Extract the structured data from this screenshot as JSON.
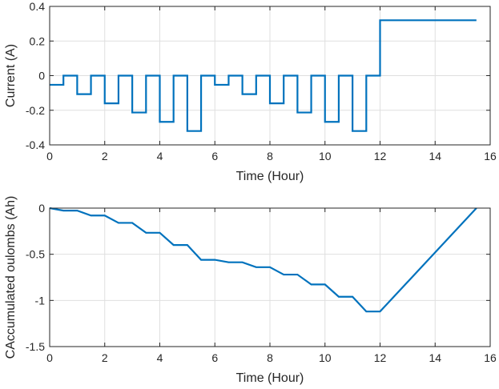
{
  "chart_data": [
    {
      "type": "line",
      "title": "",
      "xlabel": "Time (Hour)",
      "ylabel": "Current (A)",
      "xlim": [
        0,
        16
      ],
      "ylim": [
        -0.4,
        0.4
      ],
      "xticks": [
        0,
        2,
        4,
        6,
        8,
        10,
        12,
        14,
        16
      ],
      "yticks": [
        -0.4,
        -0.2,
        0,
        0.2,
        0.4
      ],
      "ytick_labels": [
        "-0.4",
        "-0.2",
        "0",
        "0.2",
        "0.4"
      ],
      "grid": true,
      "step": true,
      "color": "#0072bd",
      "series": [
        {
          "x": [
            0,
            0.5,
            0.5,
            1,
            1,
            1.5,
            1.5,
            2,
            2,
            2.5,
            2.5,
            3,
            3,
            3.5,
            3.5,
            4,
            4,
            4.5,
            4.5,
            5,
            5,
            5.5,
            5.5,
            6,
            6,
            6.5,
            6.5,
            7,
            7,
            7.5,
            7.5,
            8,
            8,
            8.5,
            8.5,
            9,
            9,
            9.5,
            9.5,
            10,
            10,
            10.5,
            10.5,
            11,
            11,
            11.5,
            11.5,
            12,
            12,
            15.5
          ],
          "y": [
            -0.053,
            -0.053,
            0,
            0,
            -0.107,
            -0.107,
            0,
            0,
            -0.16,
            -0.16,
            0,
            0,
            -0.213,
            -0.213,
            0,
            0,
            -0.267,
            -0.267,
            0,
            0,
            -0.32,
            -0.32,
            0,
            0,
            -0.053,
            -0.053,
            0,
            0,
            -0.107,
            -0.107,
            0,
            0,
            -0.16,
            -0.16,
            0,
            0,
            -0.213,
            -0.213,
            0,
            0,
            -0.267,
            -0.267,
            0,
            0,
            -0.32,
            -0.32,
            0,
            0,
            0.32,
            0.32
          ]
        }
      ]
    },
    {
      "type": "line",
      "title": "",
      "xlabel": "Time (Hour)",
      "ylabel": "CAccumulated oulombs (Ah)",
      "xlim": [
        0,
        16
      ],
      "ylim": [
        -1.5,
        0
      ],
      "xticks": [
        0,
        2,
        4,
        6,
        8,
        10,
        12,
        14,
        16
      ],
      "yticks": [
        -1.5,
        -1,
        -0.5,
        0
      ],
      "ytick_labels": [
        "-1.5",
        "-1",
        "-0.5",
        "0"
      ],
      "grid": true,
      "color": "#0072bd",
      "series": [
        {
          "x": [
            0,
            0.5,
            1,
            1.5,
            2,
            2.5,
            3,
            3.5,
            4,
            4.5,
            5,
            5.5,
            6,
            6.5,
            7,
            7.5,
            8,
            8.5,
            9,
            9.5,
            10,
            10.5,
            11,
            11.5,
            12,
            15.5
          ],
          "y": [
            0,
            -0.027,
            -0.027,
            -0.08,
            -0.08,
            -0.16,
            -0.16,
            -0.267,
            -0.267,
            -0.4,
            -0.4,
            -0.56,
            -0.56,
            -0.587,
            -0.587,
            -0.64,
            -0.64,
            -0.72,
            -0.72,
            -0.827,
            -0.827,
            -0.96,
            -0.96,
            -1.12,
            -1.12,
            0
          ]
        }
      ]
    }
  ]
}
